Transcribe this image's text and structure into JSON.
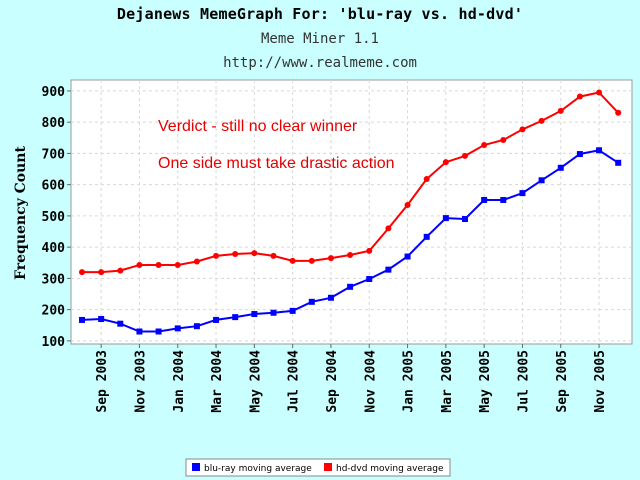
{
  "header": {
    "title": "Dejanews MemeGraph For: 'blu-ray vs. hd-dvd'",
    "subtitle": "Meme Miner 1.1",
    "url": "http://www.realmeme.com"
  },
  "chart_data": {
    "type": "line",
    "title": "Dejanews MemeGraph For: 'blu-ray vs. hd-dvd'",
    "ylabel": "Frequency Count",
    "xlabel": "",
    "ylim": [
      90,
      935
    ],
    "yticks": [
      100,
      200,
      300,
      400,
      500,
      600,
      700,
      800,
      900
    ],
    "grid": true,
    "legend_position": "bottom-center",
    "x": [
      "Aug 2003",
      "Sep 2003",
      "Oct 2003",
      "Nov 2003",
      "Dec 2003",
      "Jan 2004",
      "Feb 2004",
      "Mar 2004",
      "Apr 2004",
      "May 2004",
      "Jun 2004",
      "Jul 2004",
      "Aug 2004",
      "Sep 2004",
      "Oct 2004",
      "Nov 2004",
      "Dec 2004",
      "Jan 2005",
      "Feb 2005",
      "Mar 2005",
      "Apr 2005",
      "May 2005",
      "Jun 2005",
      "Jul 2005",
      "Aug 2005",
      "Sep 2005",
      "Oct 2005",
      "Nov 2005",
      "Dec 2005"
    ],
    "xtick_labels": [
      {
        "month": "Sep 2003",
        "label": "Sep 2003"
      },
      {
        "month": "Nov 2003",
        "label": "Nov 2003"
      },
      {
        "month": "Jan 2004",
        "label": "Jan 2004"
      },
      {
        "month": "Mar 2004",
        "label": "Mar 2004"
      },
      {
        "month": "May 2004",
        "label": "May 2004"
      },
      {
        "month": "Jul 2004",
        "label": "Jul 2004"
      },
      {
        "month": "Sep 2004",
        "label": "Sep 2004"
      },
      {
        "month": "Nov 2004",
        "label": "Nov 2004"
      },
      {
        "month": "Jan 2005",
        "label": "Jan 2005"
      },
      {
        "month": "Mar 2005",
        "label": "Mar 2005"
      },
      {
        "month": "May 2005",
        "label": "May 2005"
      },
      {
        "month": "Jul 2005",
        "label": "Jul 2005"
      },
      {
        "month": "Sep 2005",
        "label": "Sep 2005"
      },
      {
        "month": "Nov 2005",
        "label": "Nov 2005"
      }
    ],
    "series": [
      {
        "name": "blu-ray moving average",
        "color": "#0000ff",
        "marker": "square",
        "values": [
          167,
          170,
          155,
          130,
          130,
          140,
          147,
          167,
          176,
          186,
          190,
          196,
          225,
          238,
          273,
          298,
          328,
          370,
          433,
          493,
          490,
          551,
          551,
          573,
          614,
          654,
          698,
          710,
          670
        ]
      },
      {
        "name": "hd-dvd moving average",
        "color": "#ff0000",
        "marker": "circle",
        "values": [
          320,
          320,
          325,
          343,
          343,
          343,
          354,
          372,
          378,
          381,
          372,
          356,
          356,
          365,
          375,
          388,
          460,
          535,
          618,
          672,
          692,
          727,
          743,
          777,
          804,
          836,
          882,
          895,
          830
        ]
      }
    ],
    "annotations": [
      "Verdict - still no clear winner",
      "One side must take drastic action"
    ]
  }
}
